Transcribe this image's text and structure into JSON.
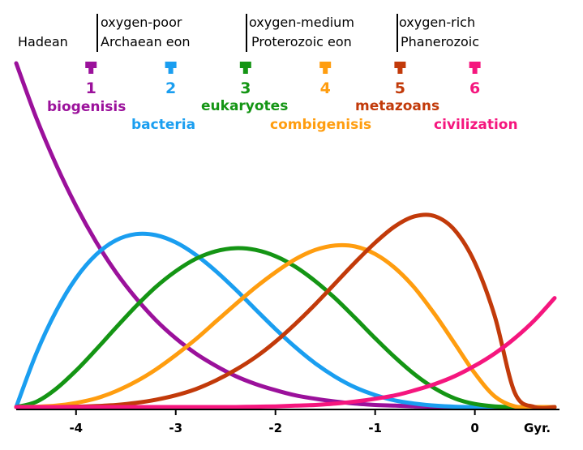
{
  "chart_data": {
    "type": "line",
    "title": "",
    "xlabel": "Gyr.",
    "ylabel": "",
    "xlim": [
      -4.6,
      0.8
    ],
    "ylim": [
      0,
      1
    ],
    "grid": false,
    "x_ticks": [
      -4,
      -3,
      -2,
      -1,
      0
    ],
    "x_tick_labels": [
      "-4",
      "-3",
      "-2",
      "-1",
      "0"
    ],
    "eras": [
      {
        "lines": [
          "Hadean"
        ]
      },
      {
        "lines": [
          "oxygen-poor",
          "Archaean eon"
        ]
      },
      {
        "lines": [
          "oxygen-medium",
          "Proterozoic eon"
        ]
      },
      {
        "lines": [
          "oxygen-rich",
          "Phanerozoic"
        ]
      }
    ],
    "era_boundaries": [
      -3.8,
      -2.5,
      -0.8
    ],
    "milestones": [
      {
        "number": "1",
        "label": "biogenisis",
        "x": -3.85,
        "color": "#9b119b"
      },
      {
        "number": "2",
        "label": "bacteria",
        "x": -3.05,
        "color": "#1a9ef0"
      },
      {
        "number": "3",
        "label": "eukaryotes",
        "x": -2.3,
        "color": "#149514"
      },
      {
        "number": "4",
        "label": "combigenisis",
        "x": -1.5,
        "color": "#ff9d0f"
      },
      {
        "number": "5",
        "label": "metazoans",
        "x": -0.75,
        "color": "#c23a0a"
      },
      {
        "number": "6",
        "label": "civilization",
        "x": 0.0,
        "color": "#f5167e"
      }
    ],
    "series": [
      {
        "color": "#9b119b",
        "x": [
          -4.6,
          -4.4,
          -4.2,
          -4.0,
          -3.8,
          -3.6,
          -3.4,
          -3.2,
          -3.0,
          -2.8,
          -2.6,
          -2.4,
          -2.2,
          -2.0,
          -1.8,
          -1.6,
          -1.4,
          -1.2,
          -1.0,
          -0.8,
          -0.6,
          -0.4,
          -0.2,
          0.0,
          0.2,
          0.4,
          0.6,
          0.8
        ],
        "y": [
          1.0,
          0.842,
          0.705,
          0.585,
          0.481,
          0.392,
          0.317,
          0.253,
          0.2,
          0.156,
          0.12,
          0.09,
          0.067,
          0.049,
          0.034,
          0.024,
          0.016,
          0.01,
          0.006,
          0.004,
          0.002,
          0.001,
          0.0,
          0.0,
          0.0,
          0.0,
          0.0,
          0.0
        ]
      },
      {
        "color": "#1a9ef0",
        "x": [
          -4.6,
          -4.4,
          -4.2,
          -4.0,
          -3.8,
          -3.6,
          -3.4,
          -3.2,
          -3.0,
          -2.8,
          -2.6,
          -2.4,
          -2.2,
          -2.0,
          -1.8,
          -1.6,
          -1.4,
          -1.2,
          -1.0,
          -0.8,
          -0.6,
          -0.4,
          -0.2,
          0.0,
          0.2,
          0.4,
          0.6,
          0.8
        ],
        "y": [
          0.0,
          0.155,
          0.279,
          0.375,
          0.443,
          0.485,
          0.503,
          0.5,
          0.479,
          0.443,
          0.396,
          0.342,
          0.284,
          0.227,
          0.174,
          0.127,
          0.088,
          0.057,
          0.035,
          0.019,
          0.01,
          0.004,
          0.001,
          0.0,
          0.0,
          0.0,
          0.0,
          0.0
        ]
      },
      {
        "color": "#149514",
        "x": [
          -4.6,
          -4.4,
          -4.2,
          -4.0,
          -3.8,
          -3.6,
          -3.4,
          -3.2,
          -3.0,
          -2.8,
          -2.6,
          -2.4,
          -2.2,
          -2.0,
          -1.8,
          -1.6,
          -1.4,
          -1.2,
          -1.0,
          -0.8,
          -0.6,
          -0.4,
          -0.2,
          0.0,
          0.2,
          0.4,
          0.6,
          0.8
        ],
        "y": [
          0.0,
          0.015,
          0.053,
          0.106,
          0.167,
          0.231,
          0.293,
          0.349,
          0.395,
          0.431,
          0.453,
          0.462,
          0.457,
          0.439,
          0.408,
          0.366,
          0.316,
          0.259,
          0.2,
          0.144,
          0.094,
          0.054,
          0.025,
          0.009,
          0.002,
          0.0,
          0.0,
          0.0
        ]
      },
      {
        "color": "#ff9d0f",
        "x": [
          -4.6,
          -4.4,
          -4.2,
          -4.0,
          -3.8,
          -3.6,
          -3.4,
          -3.2,
          -3.0,
          -2.8,
          -2.6,
          -2.4,
          -2.2,
          -2.0,
          -1.8,
          -1.6,
          -1.4,
          -1.2,
          -1.0,
          -0.8,
          -0.6,
          -0.4,
          -0.2,
          0.0,
          0.2,
          0.4,
          0.6,
          0.8
        ],
        "y": [
          0.0,
          0.001,
          0.004,
          0.012,
          0.025,
          0.046,
          0.074,
          0.109,
          0.151,
          0.197,
          0.248,
          0.299,
          0.348,
          0.392,
          0.43,
          0.457,
          0.47,
          0.467,
          0.445,
          0.404,
          0.345,
          0.269,
          0.184,
          0.098,
          0.031,
          0.002,
          0.0,
          0.0
        ]
      },
      {
        "color": "#c23a0a",
        "x": [
          -4.6,
          -4.4,
          -4.2,
          -4.0,
          -3.8,
          -3.6,
          -3.4,
          -3.2,
          -3.0,
          -2.8,
          -2.6,
          -2.4,
          -2.2,
          -2.0,
          -1.8,
          -1.6,
          -1.4,
          -1.2,
          -1.0,
          -0.8,
          -0.6,
          -0.4,
          -0.2,
          0.0,
          0.2,
          0.4,
          0.6,
          0.8
        ],
        "y": [
          0.0,
          0.0,
          0.0,
          0.001,
          0.003,
          0.006,
          0.012,
          0.021,
          0.034,
          0.052,
          0.077,
          0.108,
          0.145,
          0.19,
          0.242,
          0.299,
          0.36,
          0.421,
          0.478,
          0.526,
          0.555,
          0.555,
          0.514,
          0.42,
          0.264,
          0.042,
          0.0,
          0.0
        ]
      },
      {
        "color": "#f5167e",
        "x": [
          -4.6,
          -4.4,
          -4.2,
          -4.0,
          -3.8,
          -3.6,
          -3.4,
          -3.2,
          -3.0,
          -2.8,
          -2.6,
          -2.4,
          -2.2,
          -2.0,
          -1.8,
          -1.6,
          -1.4,
          -1.2,
          -1.0,
          -0.8,
          -0.6,
          -0.4,
          -0.2,
          0.0,
          0.2,
          0.4,
          0.6,
          0.8
        ],
        "y": [
          0.0,
          0.0,
          0.0,
          0.0,
          0.0,
          0.0,
          0.0,
          0.0,
          0.0,
          0.0,
          0.0,
          0.0,
          0.001,
          0.002,
          0.004,
          0.006,
          0.01,
          0.016,
          0.024,
          0.034,
          0.049,
          0.067,
          0.09,
          0.12,
          0.156,
          0.2,
          0.253,
          0.317
        ]
      }
    ]
  }
}
